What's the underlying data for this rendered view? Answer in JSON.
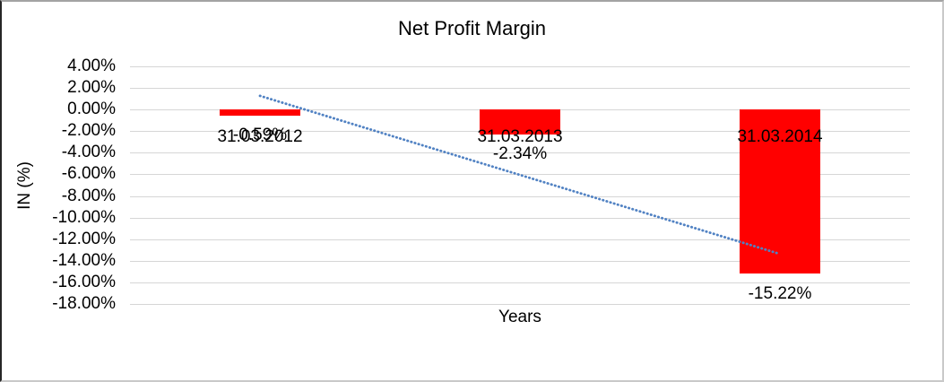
{
  "window": {
    "background_color": "#FFFFFF"
  },
  "chart_data": {
    "type": "bar",
    "title": "Net Profit Margin",
    "xlabel": "Years",
    "ylabel": "IN (%)",
    "categories": [
      "31.03.2012",
      "31.03.2013",
      "31.03.2014"
    ],
    "values": [
      -0.59,
      -2.34,
      -15.22
    ],
    "data_labels": [
      "-0.59%",
      "-2.34%",
      "-15.22%"
    ],
    "yticks": [
      {
        "value": 4,
        "label": "4.00%"
      },
      {
        "value": 2,
        "label": "2.00%"
      },
      {
        "value": 0,
        "label": "0.00%"
      },
      {
        "value": -2,
        "label": "-2.00%"
      },
      {
        "value": -4,
        "label": "-4.00%"
      },
      {
        "value": -6,
        "label": "-6.00%"
      },
      {
        "value": -8,
        "label": "-8.00%"
      },
      {
        "value": -10,
        "label": "-10.00%"
      },
      {
        "value": -12,
        "label": "-12.00%"
      },
      {
        "value": -14,
        "label": "-14.00%"
      },
      {
        "value": -16,
        "label": "-16.00%"
      },
      {
        "value": -18,
        "label": "-18.00%"
      }
    ],
    "ylim": [
      -18,
      4
    ],
    "grid": true,
    "legend_position": "none",
    "bar_color": "#FF0000",
    "trendline": {
      "kind": "linear",
      "line_style": "dotted",
      "color": "#5182C3",
      "x": [
        1,
        3
      ],
      "y": [
        1.27,
        -13.37
      ]
    }
  }
}
